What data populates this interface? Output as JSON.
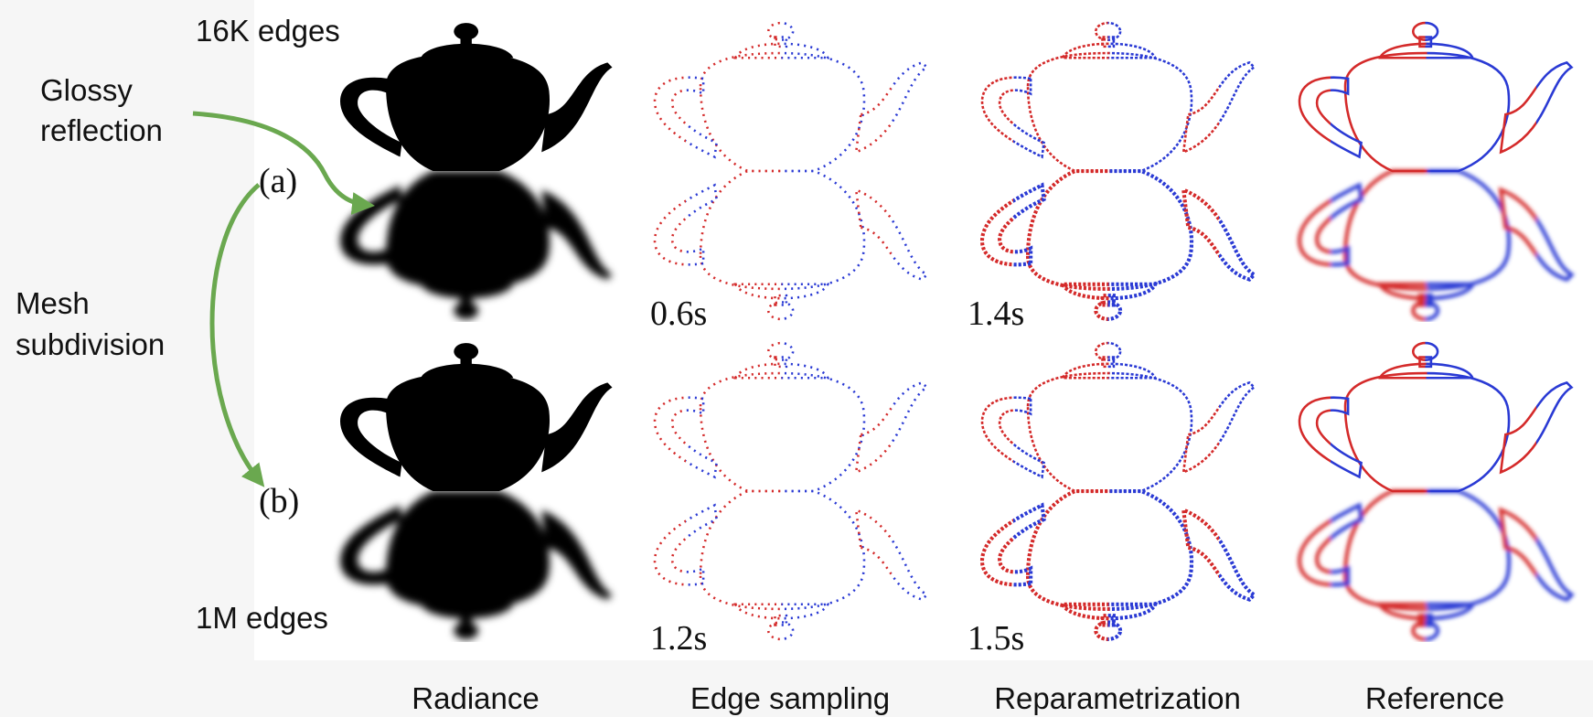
{
  "rows": [
    {
      "label": "16K edges",
      "tag": "(a)",
      "times": [
        "0.6s",
        "1.4s"
      ]
    },
    {
      "label": "1M edges",
      "tag": "(b)",
      "times": [
        "1.2s",
        "1.5s"
      ]
    }
  ],
  "annotations": {
    "glossy": [
      "Glossy",
      "reflection"
    ],
    "mesh": [
      "Mesh",
      "subdivision"
    ]
  },
  "columns": [
    "Radiance",
    "Edge sampling",
    "Reparametrization",
    "Reference"
  ]
}
